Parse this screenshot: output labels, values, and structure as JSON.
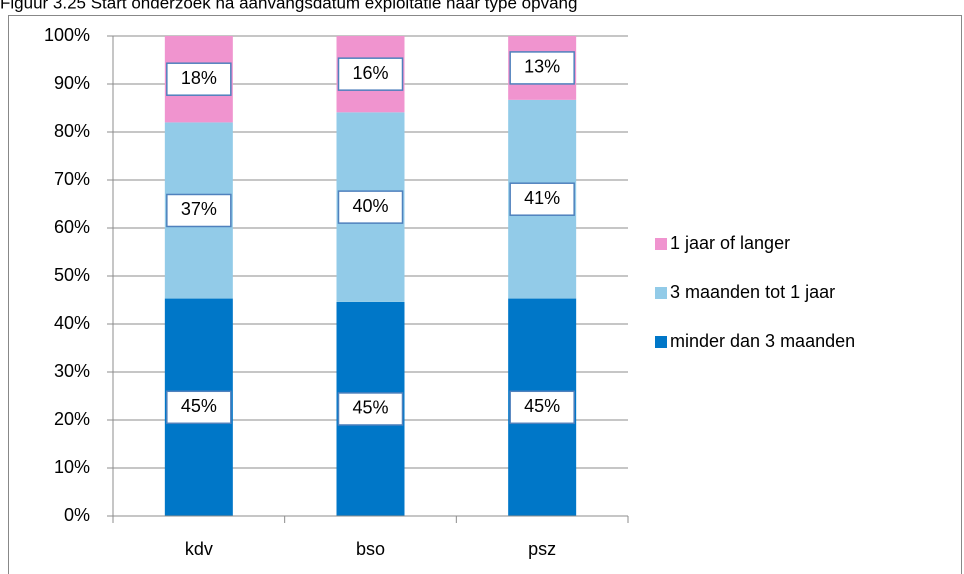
{
  "chart_data": {
    "type": "stacked_bar",
    "title": "Figuur 3.25 Start onderzoek na aanvangsdatum exploitatie naar type opvang",
    "categories": [
      "kdv",
      "bso",
      "psz"
    ],
    "series": [
      {
        "name": "minder dan 3 maanden",
        "color": "#0077c8",
        "values": [
          45.3,
          44.6,
          45.3
        ],
        "value_labels": [
          "45%",
          "45%",
          "45%"
        ]
      },
      {
        "name": "3 maanden tot 1 jaar",
        "color": "#92cbe8",
        "values": [
          36.7,
          39.5,
          41.4
        ],
        "value_labels": [
          "37%",
          "40%",
          "41%"
        ]
      },
      {
        "name": "1 jaar of langer",
        "color": "#f094cf",
        "values": [
          18,
          15.9,
          13.3
        ],
        "value_labels": [
          "18%",
          "16%",
          "13%"
        ]
      }
    ],
    "ylim": [
      0,
      100
    ],
    "yticks": [
      {
        "value": 0,
        "label": "0%"
      },
      {
        "value": 10,
        "label": "10%"
      },
      {
        "value": 20,
        "label": "20%"
      },
      {
        "value": 30,
        "label": "30%"
      },
      {
        "value": 40,
        "label": "40%"
      },
      {
        "value": 50,
        "label": "50%"
      },
      {
        "value": 60,
        "label": "60%"
      },
      {
        "value": 70,
        "label": "70%"
      },
      {
        "value": 80,
        "label": "80%"
      },
      {
        "value": 90,
        "label": "90%"
      },
      {
        "value": 100,
        "label": "100%"
      }
    ],
    "grid": true,
    "legend": "right"
  }
}
